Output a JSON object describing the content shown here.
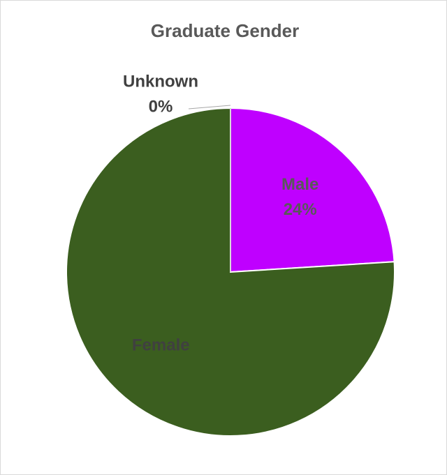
{
  "chart_data": {
    "type": "pie",
    "title": "Graduate Gender",
    "categories": [
      "Male",
      "Female",
      "Unknown"
    ],
    "values": [
      24,
      76,
      0
    ],
    "value_labels": [
      "24%",
      null,
      "0%"
    ],
    "colors": [
      "#bf00ff",
      "#3b5e1f",
      "#d9d9d9"
    ]
  }
}
